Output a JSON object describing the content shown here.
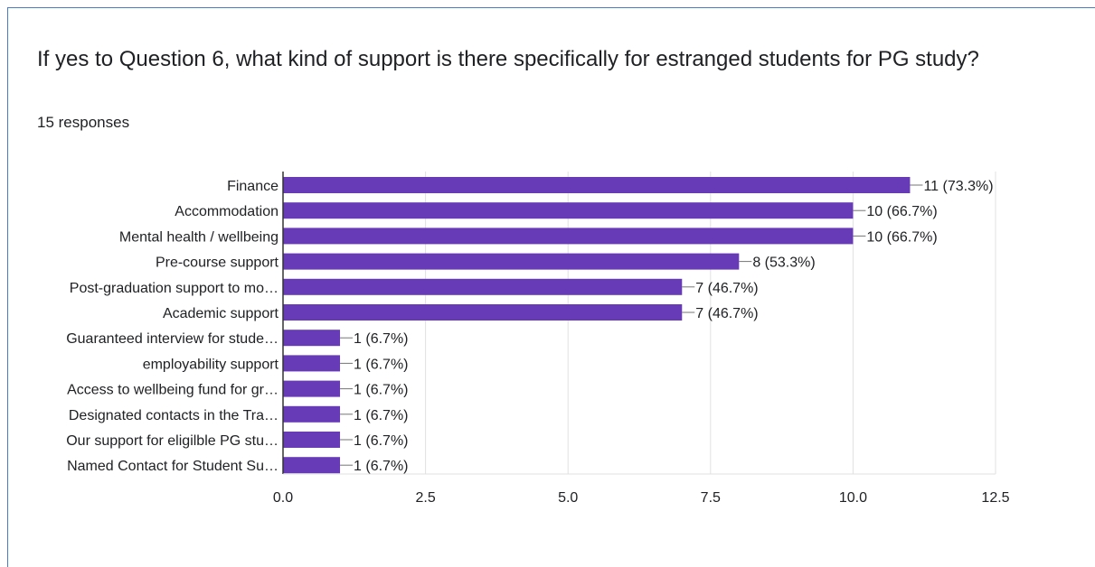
{
  "question": {
    "title": "If yes to Question 6, what kind of support is there specifically for estranged students for PG study?",
    "responses": "15 responses"
  },
  "colors": {
    "bar": "#673ab7",
    "grid": "#e0e0e0",
    "axis": "#333333",
    "text": "#202124",
    "card_border": "#4a7bc6"
  },
  "chart_data": {
    "type": "bar",
    "orientation": "horizontal",
    "title": "",
    "xlabel": "",
    "ylabel": "",
    "xlim": [
      0,
      12.5
    ],
    "ticks": [
      0,
      2.5,
      5,
      7.5,
      10,
      12.5
    ],
    "tick_labels": [
      "0.0",
      "2.5",
      "5.0",
      "7.5",
      "10.0",
      "12.5"
    ],
    "grid": true,
    "categories": [
      "Finance",
      "Accommodation",
      "Mental health / wellbeing",
      "Pre-course support",
      "Post-graduation support to mo…",
      "Academic support",
      "Guaranteed interview for stude…",
      "employability support",
      "Access to wellbeing fund for gr…",
      "Designated contacts in the Tra…",
      "Our support for eligilble PG stu…",
      "Named Contact for Student Su…"
    ],
    "values": [
      11,
      10,
      10,
      8,
      7,
      7,
      1,
      1,
      1,
      1,
      1,
      1
    ],
    "value_labels": [
      "11 (73.3%)",
      "10 (66.7%)",
      "10 (66.7%)",
      "8 (53.3%)",
      "7 (46.7%)",
      "7 (46.7%)",
      "1 (6.7%)",
      "1 (6.7%)",
      "1 (6.7%)",
      "1 (6.7%)",
      "1 (6.7%)",
      "1 (6.7%)"
    ]
  }
}
